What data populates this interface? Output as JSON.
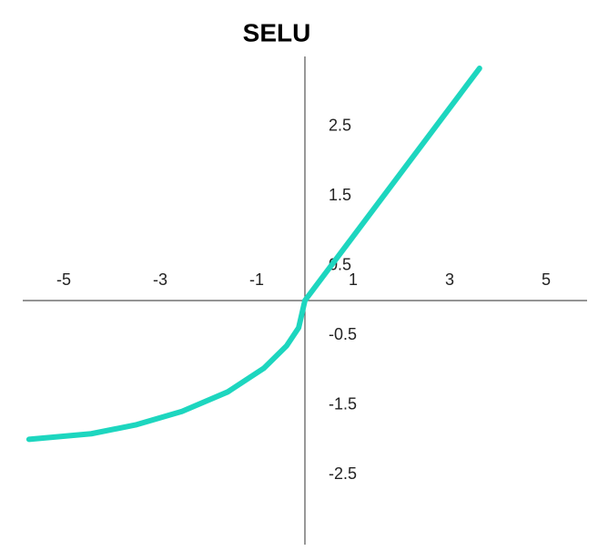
{
  "chart_data": {
    "type": "line",
    "title": "SELU",
    "x": [
      -5.72,
      -4.43,
      -3.49,
      -2.55,
      -1.6,
      -0.85,
      -0.38,
      -0.13,
      0,
      3.62
    ],
    "series": [
      {
        "color": "#1dd6bf",
        "values": [
          -1.99,
          -1.91,
          -1.78,
          -1.59,
          -1.31,
          -0.97,
          -0.65,
          -0.39,
          0,
          3.33
        ]
      }
    ],
    "xlim": [
      -5.85,
      5.85
    ],
    "ylim": [
      -3.5,
      3.5
    ],
    "xticks": [
      -5,
      -3,
      -1,
      1,
      3,
      5
    ],
    "yticks": [
      2.5,
      1.5,
      0.5,
      -0.5,
      -1.5,
      -2.5
    ],
    "grid": false
  }
}
